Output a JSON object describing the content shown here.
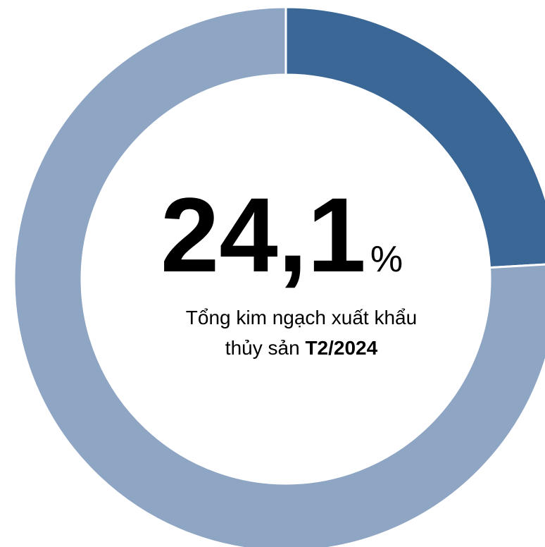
{
  "chart_data": {
    "type": "donut",
    "values": [
      24.1,
      75.9
    ],
    "colors": [
      "#3a6796",
      "#8fa5c4"
    ],
    "value_labels": [
      "24,1",
      null
    ],
    "value_unit": "%",
    "caption": [
      "Tổng kim ngạch xuất khẩu",
      "thủy sản",
      "T2/2024"
    ]
  }
}
